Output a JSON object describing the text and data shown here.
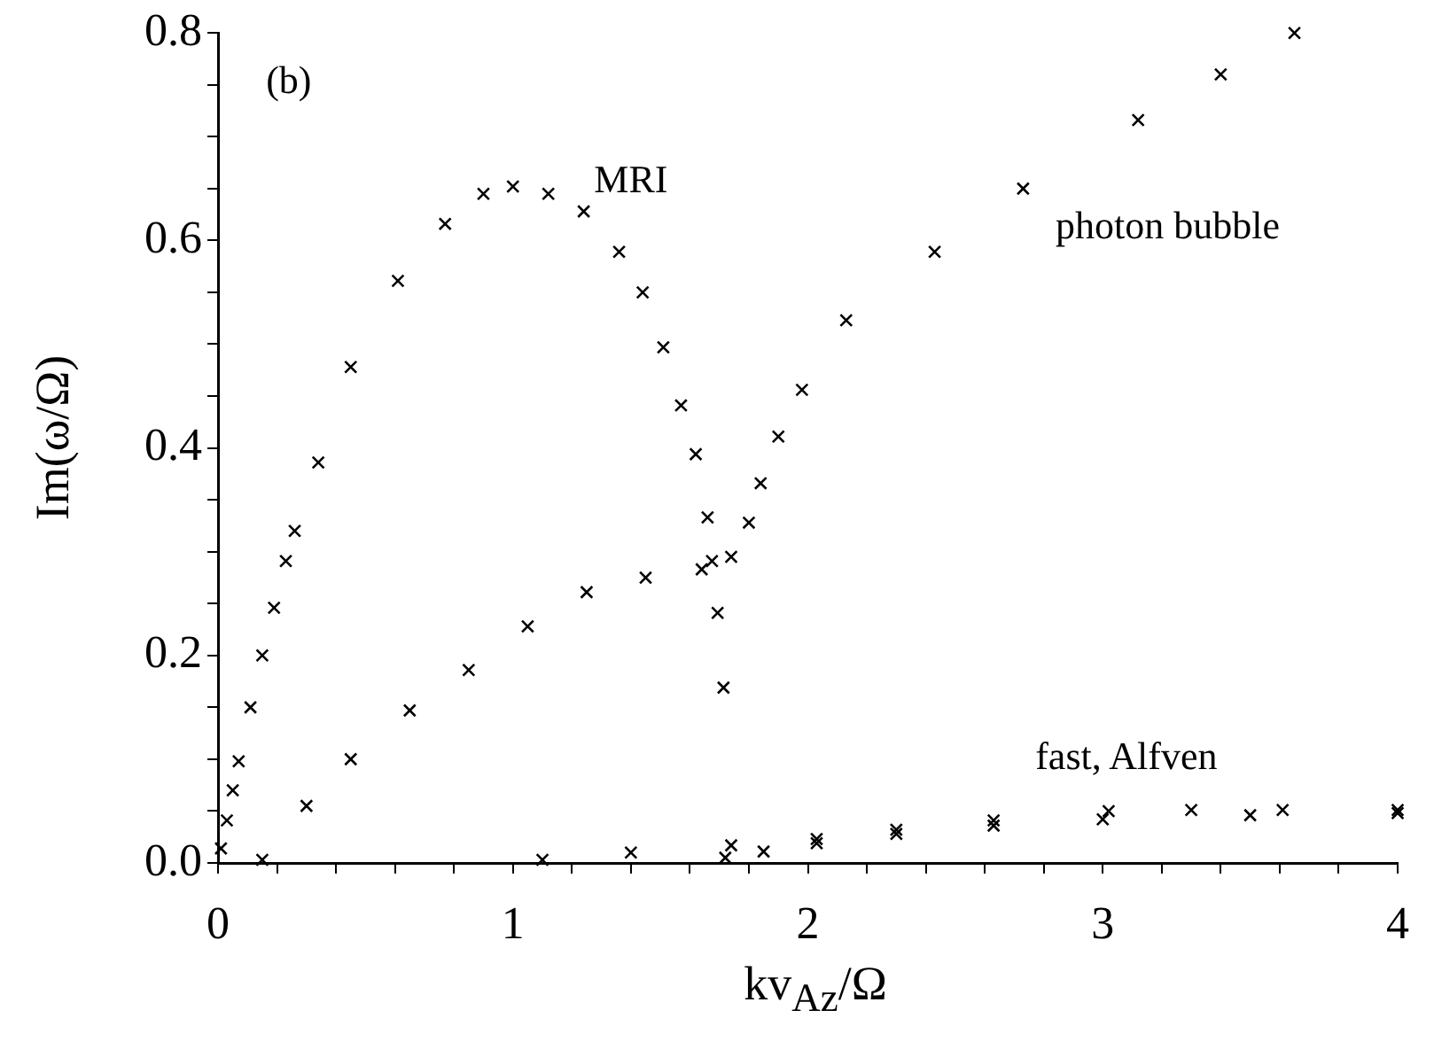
{
  "chart_data": {
    "type": "scatter",
    "xlabel": "kv$_{Az}$/Ω",
    "ylabel": "Im(ω/Ω)",
    "marker": "cross",
    "xlim": [
      0,
      4
    ],
    "ylim": [
      0,
      0.8
    ],
    "xticks": [
      0,
      {
        "value": 0.2,
        "label": null
      },
      {
        "value": 0.4,
        "label": null
      },
      {
        "value": 0.6,
        "label": null
      },
      {
        "value": 0.8,
        "label": null
      },
      1,
      {
        "value": 1.2,
        "label": null
      },
      {
        "value": 1.4,
        "label": null
      },
      {
        "value": 1.6,
        "label": null
      },
      {
        "value": 1.8,
        "label": null
      },
      2,
      {
        "value": 2.2,
        "label": null
      },
      {
        "value": 2.4,
        "label": null
      },
      {
        "value": 2.6,
        "label": null
      },
      {
        "value": 2.8,
        "label": null
      },
      3,
      {
        "value": 3.2,
        "label": null
      },
      {
        "value": 3.4,
        "label": null
      },
      {
        "value": 3.6,
        "label": null
      },
      {
        "value": 3.8,
        "label": null
      },
      4
    ],
    "yticks": [
      {
        "value": 0,
        "label": "0.0"
      },
      {
        "value": 0.05,
        "label": null
      },
      {
        "value": 0.1,
        "label": null
      },
      {
        "value": 0.15,
        "label": null
      },
      0.2,
      {
        "value": 0.25,
        "label": null
      },
      {
        "value": 0.3,
        "label": null
      },
      {
        "value": 0.35,
        "label": null
      },
      0.4,
      {
        "value": 0.45,
        "label": null
      },
      {
        "value": 0.5,
        "label": null
      },
      {
        "value": 0.55,
        "label": null
      },
      0.6,
      {
        "value": 0.65,
        "label": null
      },
      {
        "value": 0.7,
        "label": null
      },
      {
        "value": 0.75,
        "label": null
      },
      0.8
    ],
    "series": [
      {
        "color": "#000000",
        "x": [
          0.01,
          0.03,
          0.05,
          0.07,
          0.11,
          0.15,
          0.19,
          0.23,
          0.26,
          0.34,
          0.45,
          0.61,
          0.77,
          0.9,
          1.0,
          1.12,
          1.24,
          1.36,
          1.44,
          1.51,
          1.57,
          1.62,
          1.66,
          1.675,
          1.694,
          1.714
        ],
        "values": [
          0.014,
          0.041,
          0.07,
          0.098,
          0.15,
          0.2,
          0.246,
          0.291,
          0.32,
          0.386,
          0.478,
          0.561,
          0.616,
          0.645,
          0.652,
          0.645,
          0.628,
          0.589,
          0.55,
          0.497,
          0.441,
          0.394,
          0.333,
          0.291,
          0.241,
          0.169
        ]
      },
      {
        "color": "#000000",
        "x": [
          0.15,
          0.3,
          0.45,
          0.65,
          0.85,
          1.05,
          1.25,
          1.45,
          1.64,
          1.74,
          1.8,
          1.84,
          1.9,
          1.98,
          2.13,
          2.43,
          2.73,
          3.12,
          3.4,
          3.65
        ],
        "values": [
          0.003,
          0.055,
          0.1,
          0.147,
          0.186,
          0.228,
          0.261,
          0.275,
          0.283,
          0.295,
          0.328,
          0.366,
          0.411,
          0.456,
          0.523,
          0.589,
          0.65,
          0.716,
          0.76,
          0.8
        ]
      },
      {
        "color": "#000000",
        "x": [
          1.1,
          1.4,
          1.74,
          2.03,
          2.3,
          2.63,
          3.02,
          3.3,
          3.61,
          4.0
        ],
        "values": [
          0.003,
          0.01,
          0.017,
          0.023,
          0.032,
          0.041,
          0.05,
          0.051,
          0.051,
          0.051
        ]
      },
      {
        "color": "#000000",
        "x": [
          1.72,
          1.85,
          2.03,
          2.3,
          2.63,
          3.0,
          3.5,
          4.0
        ],
        "values": [
          0.005,
          0.011,
          0.019,
          0.028,
          0.036,
          0.042,
          0.046,
          0.048
        ]
      }
    ],
    "annotations": [
      "(b)",
      "MRI",
      "photon bubble",
      "fast, Alfven"
    ]
  }
}
